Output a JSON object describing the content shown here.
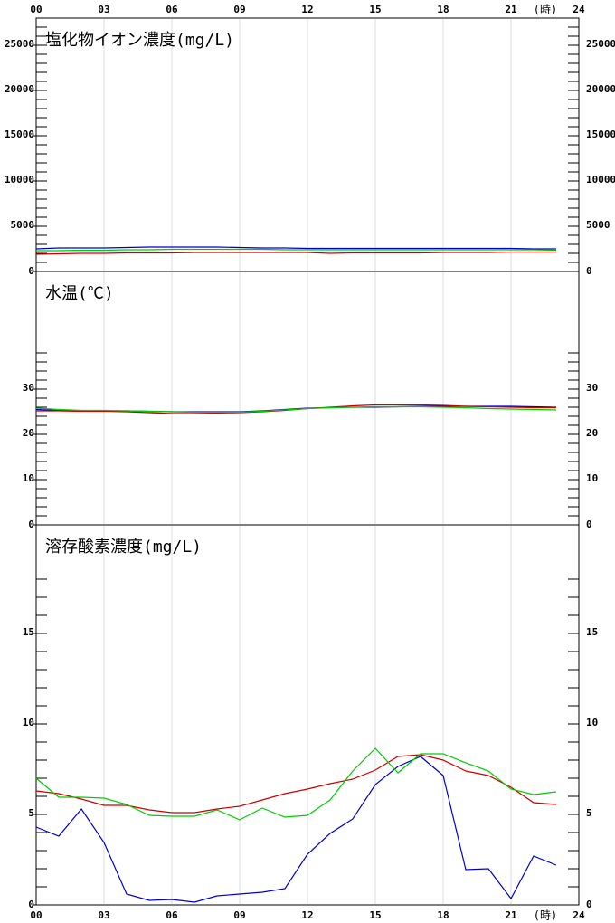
{
  "chart_data": [
    {
      "type": "line",
      "title": "塩化物イオン濃度(mg/L)",
      "x": [
        0,
        1,
        2,
        3,
        4,
        5,
        6,
        7,
        8,
        9,
        10,
        11,
        12,
        13,
        14,
        15,
        16,
        17,
        18,
        19,
        20,
        21,
        22,
        23
      ],
      "xlim": [
        0,
        24
      ],
      "xticks": [
        {
          "value": 0,
          "label": "00"
        },
        {
          "value": 3,
          "label": "03"
        },
        {
          "value": 6,
          "label": "06"
        },
        {
          "value": 9,
          "label": "09"
        },
        12,
        15,
        18,
        {
          "value": 21,
          "label": "21"
        },
        24
      ],
      "x_unit": "(時)",
      "ylim": [
        0,
        28000
      ],
      "yticks": [
        0,
        5000,
        10000,
        15000,
        20000,
        25000
      ],
      "minor_yticks": {
        "step": 1000,
        "max": 27000
      },
      "grid": true,
      "series": [
        {
          "color": "#0000cc",
          "values": [
            2500,
            2600,
            2600,
            2600,
            2650,
            2700,
            2700,
            2700,
            2700,
            2650,
            2600,
            2600,
            2550,
            2550,
            2550,
            2550,
            2550,
            2550,
            2550,
            2550,
            2550,
            2550,
            2500,
            2500
          ]
        },
        {
          "color": "#00cc00",
          "values": [
            2300,
            2300,
            2350,
            2350,
            2400,
            2400,
            2450,
            2450,
            2450,
            2450,
            2450,
            2400,
            2400,
            2400,
            2400,
            2400,
            2400,
            2400,
            2400,
            2400,
            2400,
            2400,
            2400,
            2350
          ]
        },
        {
          "color": "#cc0000",
          "values": [
            1900,
            1950,
            2000,
            2000,
            2050,
            2050,
            2050,
            2100,
            2100,
            2100,
            2100,
            2100,
            2100,
            2000,
            2050,
            2050,
            2050,
            2050,
            2100,
            2100,
            2100,
            2150,
            2150,
            2150
          ]
        }
      ]
    },
    {
      "type": "line",
      "title": "水温(℃)",
      "x": [
        0,
        1,
        2,
        3,
        4,
        5,
        6,
        7,
        8,
        9,
        10,
        11,
        12,
        13,
        14,
        15,
        16,
        17,
        18,
        19,
        20,
        21,
        22,
        23
      ],
      "xlim": [
        0,
        24
      ],
      "xticks": [
        {
          "value": 0,
          "label": "00"
        },
        {
          "value": 3,
          "label": "03"
        },
        {
          "value": 6,
          "label": "06"
        },
        {
          "value": 9,
          "label": "09"
        },
        12,
        15,
        18,
        {
          "value": 21,
          "label": "21"
        },
        24
      ],
      "ylim": [
        0,
        56
      ],
      "yticks": [
        0,
        10,
        20,
        30
      ],
      "minor_yticks": {
        "step": 2,
        "max": 38
      },
      "grid": true,
      "series": [
        {
          "color": "#0000cc",
          "values": [
            25.5,
            25.3,
            25.2,
            25.2,
            25.2,
            25.1,
            25.0,
            25.0,
            25.0,
            25.0,
            25.2,
            25.5,
            25.8,
            25.9,
            26.0,
            26.0,
            26.1,
            26.2,
            26.2,
            26.2,
            26.2,
            26.2,
            26.1,
            26.0
          ]
        },
        {
          "color": "#cc0000",
          "values": [
            25.2,
            25.2,
            25.1,
            25.1,
            25.0,
            24.8,
            24.6,
            24.6,
            24.7,
            24.8,
            25.0,
            25.3,
            25.7,
            26.0,
            26.3,
            26.5,
            26.5,
            26.5,
            26.4,
            26.2,
            26.1,
            26.0,
            25.9,
            25.9
          ]
        },
        {
          "color": "#00cc00",
          "values": [
            25.8,
            25.5,
            25.3,
            25.3,
            25.2,
            25.1,
            25.0,
            24.9,
            24.9,
            24.9,
            25.1,
            25.4,
            25.7,
            25.9,
            26.0,
            26.1,
            26.1,
            26.1,
            26.0,
            25.9,
            25.7,
            25.6,
            25.5,
            25.4
          ]
        }
      ]
    },
    {
      "type": "line",
      "title": "溶存酸素濃度(mg/L)",
      "x": [
        0,
        1,
        2,
        3,
        4,
        5,
        6,
        7,
        8,
        9,
        10,
        11,
        12,
        13,
        14,
        15,
        16,
        17,
        18,
        19,
        20,
        21,
        22,
        23
      ],
      "xlim": [
        0,
        24
      ],
      "xticks": [
        {
          "value": 0,
          "label": "00"
        },
        {
          "value": 3,
          "label": "03"
        },
        {
          "value": 6,
          "label": "06"
        },
        {
          "value": 9,
          "label": "09"
        },
        12,
        15,
        18,
        {
          "value": 21,
          "label": "21"
        },
        24
      ],
      "x_unit": "(時)",
      "ylim": [
        0,
        21
      ],
      "yticks": [
        0,
        5,
        10,
        15
      ],
      "minor_yticks": {
        "step": 1,
        "max": 18
      },
      "grid": true,
      "series": [
        {
          "color": "#0000cc",
          "values": [
            4.3,
            3.8,
            5.3,
            3.45,
            0.6,
            0.25,
            0.3,
            0.15,
            0.5,
            0.6,
            0.7,
            0.9,
            2.8,
            3.95,
            4.75,
            6.65,
            7.65,
            8.2,
            7.15,
            1.95,
            2.0,
            0.35,
            2.7,
            2.2
          ]
        },
        {
          "color": "#cc0000",
          "values": [
            6.3,
            6.15,
            5.85,
            5.5,
            5.5,
            5.25,
            5.1,
            5.1,
            5.3,
            5.45,
            5.8,
            6.15,
            6.4,
            6.7,
            6.95,
            7.45,
            8.2,
            8.3,
            8.0,
            7.4,
            7.15,
            6.5,
            5.65,
            5.55
          ]
        },
        {
          "color": "#00cc00",
          "values": [
            7.0,
            5.95,
            5.95,
            5.9,
            5.55,
            4.95,
            4.9,
            4.9,
            5.25,
            4.7,
            5.35,
            4.85,
            4.95,
            5.8,
            7.4,
            8.65,
            7.3,
            8.35,
            8.35,
            7.85,
            7.4,
            6.4,
            6.1,
            6.25
          ]
        }
      ]
    }
  ]
}
